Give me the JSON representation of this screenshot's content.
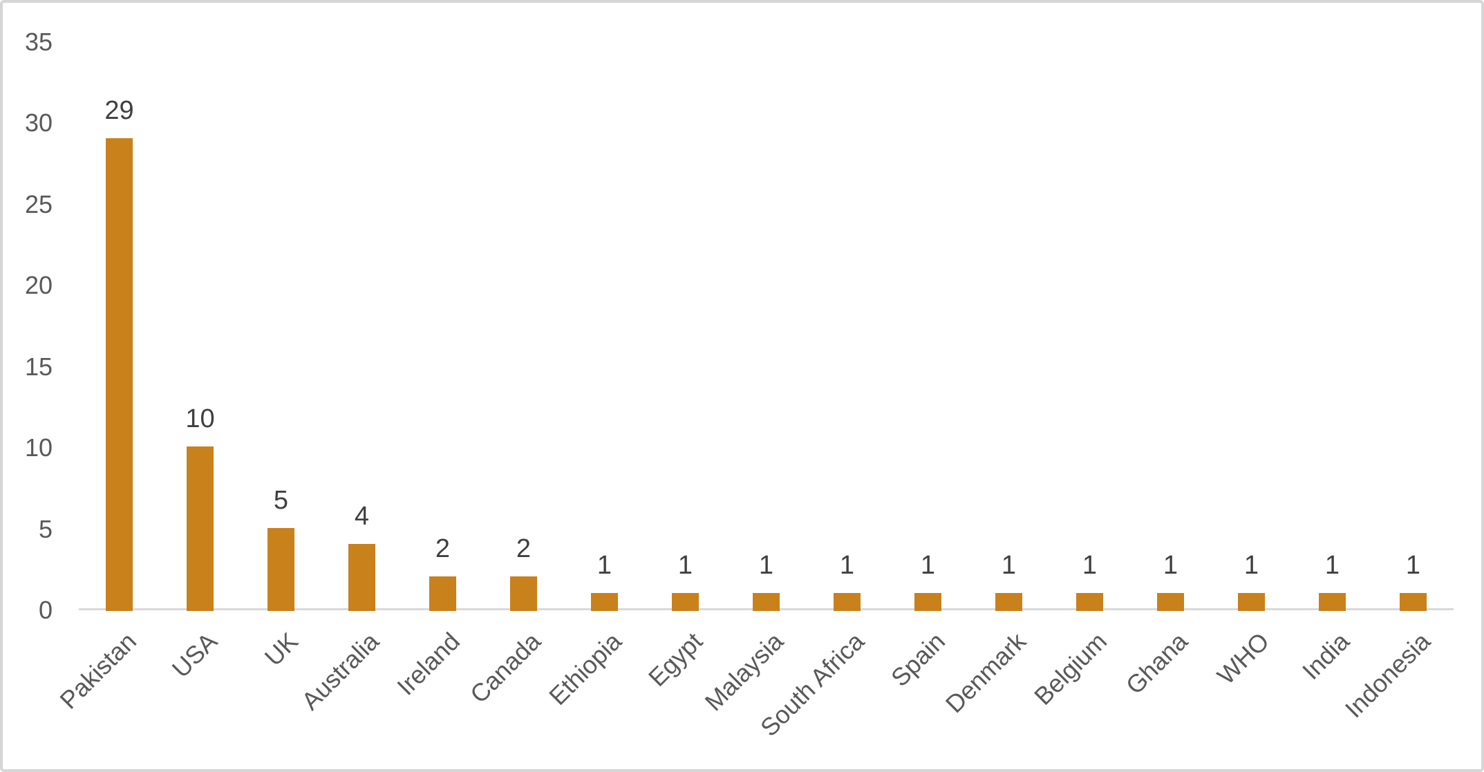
{
  "chart_data": {
    "type": "bar",
    "categories": [
      "Pakistan",
      "USA",
      "UK",
      "Australia",
      "Ireland",
      "Canada",
      "Ethiopia",
      "Egypt",
      "Malaysia",
      "South Africa",
      "Spain",
      "Denmark",
      "Belgium",
      "Ghana",
      "WHO",
      "India",
      "Indonesia"
    ],
    "values": [
      29,
      10,
      5,
      4,
      2,
      2,
      1,
      1,
      1,
      1,
      1,
      1,
      1,
      1,
      1,
      1,
      1
    ],
    "data_labels": [
      "29",
      "10",
      "5",
      "4",
      "2",
      "2",
      "1",
      "1",
      "1",
      "1",
      "1",
      "1",
      "1",
      "1",
      "1",
      "1",
      "1"
    ],
    "ytick_labels": [
      "0",
      "5",
      "10",
      "15",
      "20",
      "25",
      "30",
      "35"
    ],
    "yticks": [
      0,
      5,
      10,
      15,
      20,
      25,
      30,
      35
    ],
    "ylim": [
      0,
      35
    ],
    "grid": false,
    "legend": false,
    "x_label_rotation_deg": -45,
    "colors": {
      "bar": "#C8811B",
      "axis_line": "#D9D9D9",
      "tick_label": "#595959",
      "x_label": "#595959",
      "data_label": "#3F3F3F",
      "background": "#FFFFFF",
      "frame_border": "#D6D6D6"
    }
  }
}
